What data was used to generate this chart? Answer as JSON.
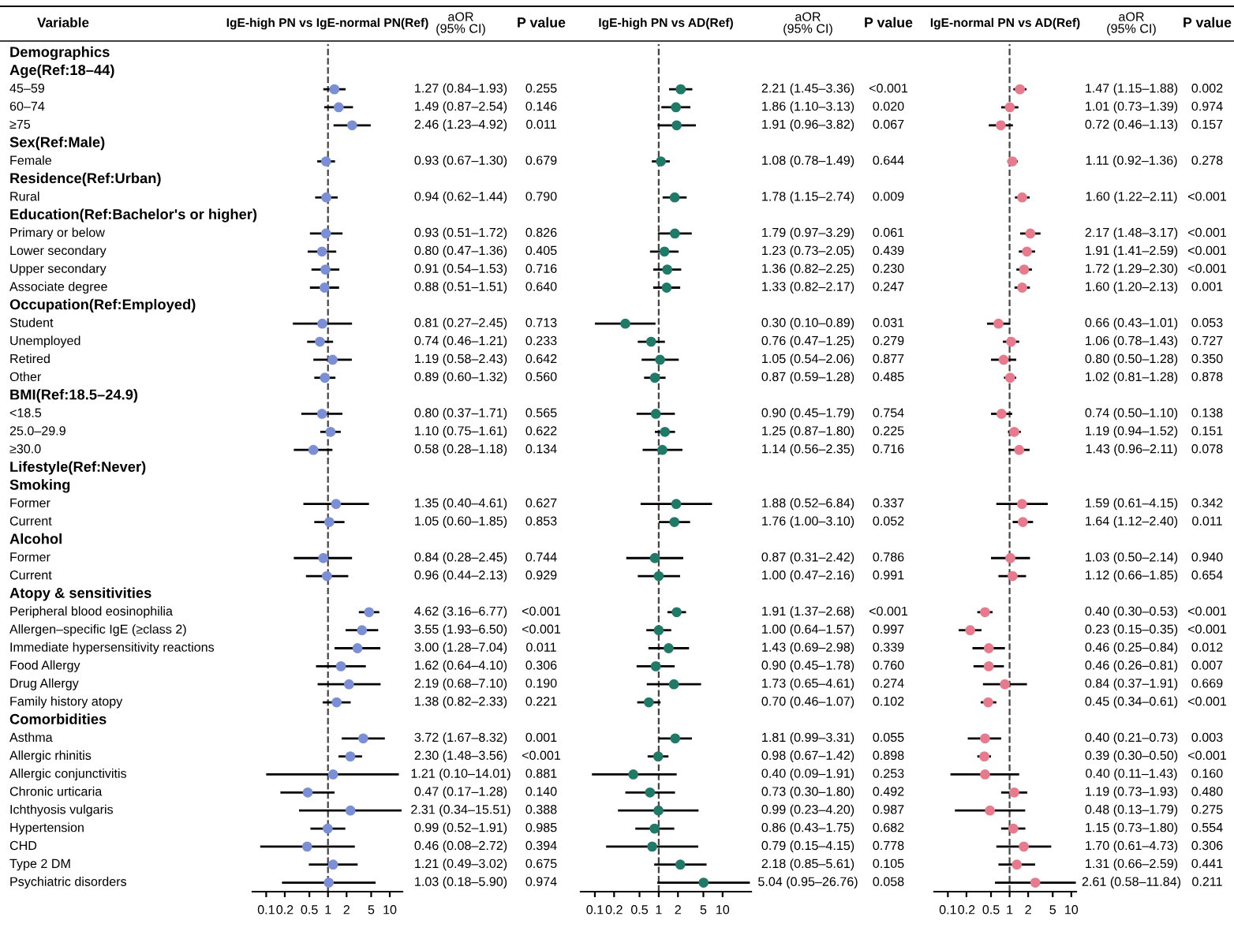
{
  "chart_data": [
    {
      "type": "scatter",
      "orientation": "horizontal",
      "title": "IgE-high PN vs IgE-normal PN(Ref)",
      "ylabel": "Variable",
      "categories": [
        "Demographics",
        "Age(Ref:18–44)",
        "45–59",
        "60–74",
        "≥75",
        "Sex(Ref:Male)",
        "Female",
        "Residence(Ref:Urban)",
        "Rural",
        "Education(Ref:Bachelor's or higher)",
        "Primary or below",
        "Lower secondary",
        "Upper secondary",
        "Associate degree",
        "Occupation(Ref:Employed)",
        "Student",
        "Unemployed",
        "Retired",
        "Other",
        "BMI(Ref:18.5–24.9)",
        "<18.5",
        "25.0–29.9",
        "≥30.0",
        "Lifestyle(Ref:Never)",
        "Smoking",
        "Former",
        "Current",
        "Alcohol",
        "Former",
        "Current",
        "Atopy & sensitivities",
        "Peripheral blood eosinophilia",
        "Allergen–specific IgE (≥class 2)",
        "Immediate hypersensitivity reactions",
        "Food Allergy",
        "Drug Allergy",
        "Family history atopy",
        "Comorbidities",
        "Asthma",
        "Allergic rhinitis",
        "Allergic conjunctivitis",
        "Chronic urticaria",
        "Ichthyosis vulgaris",
        "Hypertension",
        "CHD",
        "Type 2 DM",
        "Psychiatric disorders"
      ],
      "color": "#7b8fd6",
      "marker": "circle",
      "values": [
        null,
        null,
        1.27,
        1.49,
        2.46,
        null,
        0.93,
        null,
        0.94,
        null,
        0.93,
        0.8,
        0.91,
        0.88,
        null,
        0.81,
        0.74,
        1.19,
        0.89,
        null,
        0.8,
        1.1,
        0.58,
        null,
        null,
        1.35,
        1.05,
        null,
        0.84,
        0.96,
        null,
        4.62,
        3.55,
        3.0,
        1.62,
        2.19,
        1.38,
        null,
        3.72,
        2.3,
        1.21,
        0.47,
        2.31,
        0.99,
        0.46,
        1.21,
        1.03
      ],
      "errors": [
        null,
        null,
        [
          0.84,
          1.93
        ],
        [
          0.87,
          2.54
        ],
        [
          1.23,
          4.92
        ],
        null,
        [
          0.67,
          1.3
        ],
        null,
        [
          0.62,
          1.44
        ],
        null,
        [
          0.51,
          1.72
        ],
        [
          0.47,
          1.36
        ],
        [
          0.54,
          1.53
        ],
        [
          0.51,
          1.51
        ],
        null,
        [
          0.27,
          2.45
        ],
        [
          0.46,
          1.21
        ],
        [
          0.58,
          2.43
        ],
        [
          0.6,
          1.32
        ],
        null,
        [
          0.37,
          1.71
        ],
        [
          0.75,
          1.61
        ],
        [
          0.28,
          1.18
        ],
        null,
        null,
        [
          0.4,
          4.61
        ],
        [
          0.6,
          1.85
        ],
        null,
        [
          0.28,
          2.45
        ],
        [
          0.44,
          2.13
        ],
        null,
        [
          3.16,
          6.77
        ],
        [
          1.93,
          6.5
        ],
        [
          1.28,
          7.04
        ],
        [
          0.64,
          4.1
        ],
        [
          0.68,
          7.1
        ],
        [
          0.82,
          2.33
        ],
        null,
        [
          1.67,
          8.32
        ],
        [
          1.48,
          3.56
        ],
        [
          0.1,
          14.01
        ],
        [
          0.17,
          1.28
        ],
        [
          0.34,
          15.51
        ],
        [
          0.52,
          1.91
        ],
        [
          0.08,
          2.72
        ],
        [
          0.49,
          3.02
        ],
        [
          0.18,
          5.9
        ]
      ],
      "value_labels": [
        null,
        null,
        "1.27 (0.84–1.93)",
        "1.49 (0.87–2.54)",
        "2.46 (1.23–4.92)",
        null,
        "0.93 (0.67–1.30)",
        null,
        "0.94 (0.62–1.44)",
        null,
        "0.93 (0.51–1.72)",
        "0.80 (0.47–1.36)",
        "0.91 (0.54–1.53)",
        "0.88 (0.51–1.51)",
        null,
        "0.81 (0.27–2.45)",
        "0.74 (0.46–1.21)",
        "1.19 (0.58–2.43)",
        "0.89 (0.60–1.32)",
        null,
        "0.80 (0.37–1.71)",
        "1.10 (0.75–1.61)",
        "0.58 (0.28–1.18)",
        null,
        null,
        "1.35 (0.40–4.61)",
        "1.05 (0.60–1.85)",
        null,
        "0.84 (0.28–2.45)",
        "0.96 (0.44–2.13)",
        null,
        "4.62 (3.16–6.77)",
        "3.55 (1.93–6.50)",
        "3.00 (1.28–7.04)",
        "1.62 (0.64–4.10)",
        "2.19 (0.68–7.10)",
        "1.38 (0.82–2.33)",
        null,
        "3.72 (1.67–8.32)",
        "2.30 (1.48–3.56)",
        "1.21 (0.10–14.01)",
        "0.47 (0.17–1.28)",
        "2.31 (0.34–15.51)",
        "0.99 (0.52–1.91)",
        "0.46 (0.08–2.72)",
        "1.21 (0.49–3.02)",
        "1.03 (0.18–5.90)"
      ],
      "annotations": [
        "aOR\n(95% CI)",
        "P value",
        "0.255",
        "0.146",
        "0.011",
        "0.679",
        "0.790",
        "0.826",
        "0.405",
        "0.716",
        "0.640",
        "0.713",
        "0.233",
        "0.642",
        "0.560",
        "0.565",
        "0.622",
        "0.134",
        "0.627",
        "0.853",
        "0.744",
        "0.929",
        "<0.001",
        "<0.001",
        "0.011",
        "0.306",
        "0.190",
        "0.221",
        "0.001",
        "<0.001",
        "0.881",
        "0.140",
        "0.388",
        "0.985",
        "0.394",
        "0.675",
        "0.974"
      ],
      "log": "x",
      "xlim": [
        0.06,
        16
      ],
      "xticks": [
        0.1,
        0.2,
        0.5,
        1,
        2,
        5,
        10
      ],
      "ref_lines": [
        {
          "axis": "x",
          "value": 1,
          "line_style": "dashed"
        }
      ]
    },
    {
      "type": "scatter",
      "orientation": "horizontal",
      "title": "IgE-high PN vs AD(Ref)",
      "tick_labels": "x",
      "categories": [
        null,
        null,
        null,
        null,
        null,
        null,
        null,
        null,
        null,
        null,
        null,
        null,
        null,
        null,
        null,
        null,
        null,
        null,
        null,
        null,
        null,
        null,
        null,
        null,
        null,
        null,
        null,
        null,
        null,
        null,
        null,
        null,
        null,
        null,
        null,
        null,
        null,
        null,
        null,
        null,
        null,
        null,
        null,
        null,
        null,
        null,
        null
      ],
      "color": "#1f7a68",
      "marker": "circle",
      "values": [
        null,
        null,
        2.21,
        1.86,
        1.91,
        null,
        1.08,
        null,
        1.78,
        null,
        1.79,
        1.23,
        1.36,
        1.33,
        null,
        0.3,
        0.76,
        1.05,
        0.87,
        null,
        0.9,
        1.25,
        1.14,
        null,
        null,
        1.88,
        1.76,
        null,
        0.87,
        1.0,
        null,
        1.91,
        1.0,
        1.43,
        0.9,
        1.73,
        0.7,
        null,
        1.81,
        0.98,
        0.4,
        0.73,
        0.99,
        0.86,
        0.79,
        2.18,
        5.04
      ],
      "errors": [
        null,
        null,
        [
          1.45,
          3.36
        ],
        [
          1.1,
          3.13
        ],
        [
          0.96,
          3.82
        ],
        null,
        [
          0.78,
          1.49
        ],
        null,
        [
          1.15,
          2.74
        ],
        null,
        [
          0.97,
          3.29
        ],
        [
          0.73,
          2.05
        ],
        [
          0.82,
          2.25
        ],
        [
          0.82,
          2.17
        ],
        null,
        [
          0.1,
          0.89
        ],
        [
          0.47,
          1.25
        ],
        [
          0.54,
          2.06
        ],
        [
          0.59,
          1.28
        ],
        null,
        [
          0.45,
          1.79
        ],
        [
          0.87,
          1.8
        ],
        [
          0.56,
          2.35
        ],
        null,
        null,
        [
          0.52,
          6.84
        ],
        [
          1.0,
          3.1
        ],
        null,
        [
          0.31,
          2.42
        ],
        [
          0.47,
          2.16
        ],
        null,
        [
          1.37,
          2.68
        ],
        [
          0.64,
          1.57
        ],
        [
          0.69,
          2.98
        ],
        [
          0.45,
          1.78
        ],
        [
          0.65,
          4.61
        ],
        [
          0.46,
          1.07
        ],
        null,
        [
          0.99,
          3.31
        ],
        [
          0.67,
          1.42
        ],
        [
          0.09,
          1.91
        ],
        [
          0.3,
          1.8
        ],
        [
          0.23,
          4.2
        ],
        [
          0.43,
          1.75
        ],
        [
          0.15,
          4.15
        ],
        [
          0.85,
          5.61
        ],
        [
          0.95,
          26.76
        ]
      ],
      "value_labels": [
        null,
        null,
        "2.21 (1.45–3.36)",
        "1.86 (1.10–3.13)",
        "1.91 (0.96–3.82)",
        null,
        "1.08 (0.78–1.49)",
        null,
        "1.78 (1.15–2.74)",
        null,
        "1.79 (0.97–3.29)",
        "1.23 (0.73–2.05)",
        "1.36 (0.82–2.25)",
        "1.33 (0.82–2.17)",
        null,
        "0.30 (0.10–0.89)",
        "0.76 (0.47–1.25)",
        "1.05 (0.54–2.06)",
        "0.87 (0.59–1.28)",
        null,
        "0.90 (0.45–1.79)",
        "1.25 (0.87–1.80)",
        "1.14 (0.56–2.35)",
        null,
        null,
        "1.88 (0.52–6.84)",
        "1.76 (1.00–3.10)",
        null,
        "0.87 (0.31–2.42)",
        "1.00 (0.47–2.16)",
        null,
        "1.91 (1.37–2.68)",
        "1.00 (0.64–1.57)",
        "1.43 (0.69–2.98)",
        "0.90 (0.45–1.78)",
        "1.73 (0.65–4.61)",
        "0.70 (0.46–1.07)",
        null,
        "1.81 (0.99–3.31)",
        "0.98 (0.67–1.42)",
        "0.40 (0.09–1.91)",
        "0.73 (0.30–1.80)",
        "0.99 (0.23–4.20)",
        "0.86 (0.43–1.75)",
        "0.79 (0.15–4.15)",
        "2.18 (0.85–5.61)",
        "5.04 (0.95–26.76)"
      ],
      "annotations": [
        "aOR\n(95% CI)",
        "P value",
        "<0.001",
        "0.020",
        "0.067",
        "0.644",
        "0.009",
        "0.061",
        "0.439",
        "0.230",
        "0.247",
        "0.031",
        "0.279",
        "0.877",
        "0.485",
        "0.754",
        "0.225",
        "0.716",
        "0.337",
        "0.052",
        "0.786",
        "0.991",
        "<0.001",
        "0.997",
        "0.339",
        "0.760",
        "0.274",
        "0.102",
        "0.055",
        "0.898",
        "0.253",
        "0.492",
        "0.987",
        "0.682",
        "0.778",
        "0.105",
        "0.058"
      ],
      "log": "x",
      "xlim": [
        0.06,
        28
      ],
      "xticks": [
        0.1,
        0.2,
        0.5,
        1,
        2,
        5,
        10
      ],
      "ref_lines": [
        {
          "axis": "x",
          "value": 1,
          "line_style": "dashed"
        }
      ]
    },
    {
      "type": "scatter",
      "orientation": "horizontal",
      "title": "IgE-normal PN vs AD(Ref)",
      "tick_labels": "x",
      "categories": [
        null,
        null,
        null,
        null,
        null,
        null,
        null,
        null,
        null,
        null,
        null,
        null,
        null,
        null,
        null,
        null,
        null,
        null,
        null,
        null,
        null,
        null,
        null,
        null,
        null,
        null,
        null,
        null,
        null,
        null,
        null,
        null,
        null,
        null,
        null,
        null,
        null,
        null,
        null,
        null,
        null,
        null,
        null,
        null,
        null,
        null,
        null
      ],
      "color": "#e87a8e",
      "marker": "circle",
      "values": [
        null,
        null,
        1.47,
        1.01,
        0.72,
        null,
        1.11,
        null,
        1.6,
        null,
        2.17,
        1.91,
        1.72,
        1.6,
        null,
        0.66,
        1.06,
        0.8,
        1.02,
        null,
        0.74,
        1.19,
        1.43,
        null,
        null,
        1.59,
        1.64,
        null,
        1.03,
        1.12,
        null,
        0.4,
        0.23,
        0.46,
        0.46,
        0.84,
        0.45,
        null,
        0.4,
        0.39,
        0.4,
        1.19,
        0.48,
        1.15,
        1.7,
        1.31,
        2.61
      ],
      "errors": [
        null,
        null,
        [
          1.15,
          1.88
        ],
        [
          0.73,
          1.39
        ],
        [
          0.46,
          1.13
        ],
        null,
        [
          0.92,
          1.36
        ],
        null,
        [
          1.22,
          2.11
        ],
        null,
        [
          1.48,
          3.17
        ],
        [
          1.41,
          2.59
        ],
        [
          1.29,
          2.3
        ],
        [
          1.2,
          2.13
        ],
        null,
        [
          0.43,
          1.01
        ],
        [
          0.78,
          1.43
        ],
        [
          0.5,
          1.28
        ],
        [
          0.81,
          1.28
        ],
        null,
        [
          0.5,
          1.1
        ],
        [
          0.94,
          1.52
        ],
        [
          0.96,
          2.11
        ],
        null,
        null,
        [
          0.61,
          4.15
        ],
        [
          1.12,
          2.4
        ],
        null,
        [
          0.5,
          2.14
        ],
        [
          0.66,
          1.85
        ],
        null,
        [
          0.3,
          0.53
        ],
        [
          0.15,
          0.35
        ],
        [
          0.25,
          0.84
        ],
        [
          0.26,
          0.81
        ],
        [
          0.37,
          1.91
        ],
        [
          0.34,
          0.61
        ],
        null,
        [
          0.21,
          0.73
        ],
        [
          0.3,
          0.5
        ],
        [
          0.11,
          1.43
        ],
        [
          0.73,
          1.93
        ],
        [
          0.13,
          1.79
        ],
        [
          0.73,
          1.8
        ],
        [
          0.61,
          4.73
        ],
        [
          0.66,
          2.59
        ],
        [
          0.58,
          11.84
        ]
      ],
      "value_labels": [
        null,
        null,
        "1.47 (1.15–1.88)",
        "1.01 (0.73–1.39)",
        "0.72 (0.46–1.13)",
        null,
        "1.11 (0.92–1.36)",
        null,
        "1.60 (1.22–2.11)",
        null,
        "2.17 (1.48–3.17)",
        "1.91 (1.41–2.59)",
        "1.72 (1.29–2.30)",
        "1.60 (1.20–2.13)",
        null,
        "0.66 (0.43–1.01)",
        "1.06 (0.78–1.43)",
        "0.80 (0.50–1.28)",
        "1.02 (0.81–1.28)",
        null,
        "0.74 (0.50–1.10)",
        "1.19 (0.94–1.52)",
        "1.43 (0.96–2.11)",
        null,
        null,
        "1.59 (0.61–4.15)",
        "1.64 (1.12–2.40)",
        null,
        "1.03 (0.50–2.14)",
        "1.12 (0.66–1.85)",
        null,
        "0.40 (0.30–0.53)",
        "0.23 (0.15–0.35)",
        "0.46 (0.25–0.84)",
        "0.46 (0.26–0.81)",
        "0.84 (0.37–1.91)",
        "0.45 (0.34–0.61)",
        null,
        "0.40 (0.21–0.73)",
        "0.39 (0.30–0.50)",
        "0.40 (0.11–1.43)",
        "1.19 (0.73–1.93)",
        "0.48 (0.13–1.79)",
        "1.15 (0.73–1.80)",
        "1.70 (0.61–4.73)",
        "1.31 (0.66–2.59)",
        "2.61 (0.58–11.84)"
      ],
      "annotations": [
        "aOR\n(95% CI)",
        "P value",
        "0.002",
        "0.974",
        "0.157",
        "0.278",
        "<0.001",
        "<0.001",
        "<0.001",
        "<0.001",
        "0.001",
        "0.053",
        "0.727",
        "0.350",
        "0.878",
        "0.138",
        "0.151",
        "0.078",
        "0.342",
        "0.011",
        "0.940",
        "0.654",
        "<0.001",
        "<0.001",
        "0.012",
        "0.007",
        "0.669",
        "<0.001",
        "0.003",
        "<0.001",
        "0.160",
        "0.480",
        "0.275",
        "0.554",
        "0.306",
        "0.441",
        "0.211"
      ],
      "log": "x",
      "xlim": [
        0.06,
        12
      ],
      "xticks": [
        0.1,
        0.2,
        0.5,
        1,
        2,
        5,
        10
      ],
      "ref_lines": [
        {
          "axis": "x",
          "value": 1,
          "line_style": "dashed"
        }
      ]
    }
  ]
}
